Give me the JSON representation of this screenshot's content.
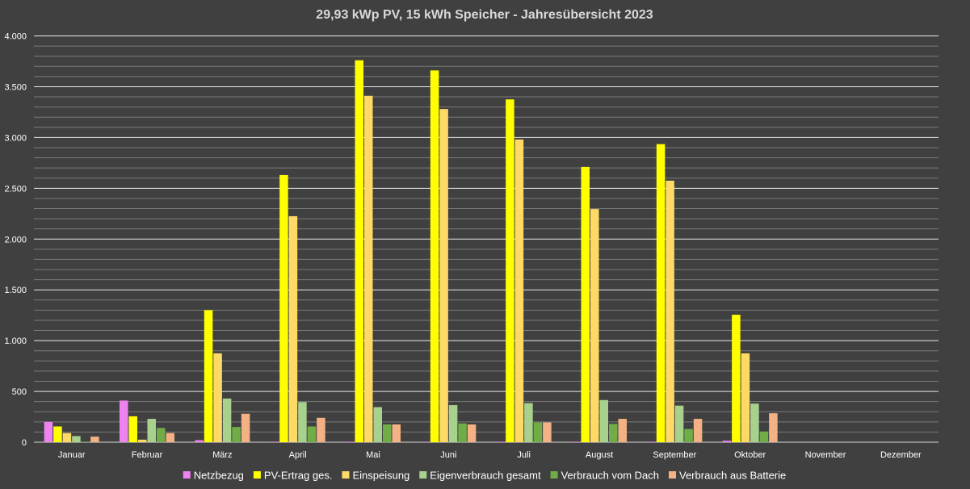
{
  "chart_data": {
    "type": "bar",
    "title": "29,93 kWp PV, 15 kWh Speicher - Jahresübersicht 2023",
    "xlabel": "",
    "ylabel": "",
    "ylim": [
      0,
      4000
    ],
    "yticks": [
      0,
      500,
      1000,
      1500,
      2000,
      2500,
      3000,
      3500,
      4000
    ],
    "ytick_labels": [
      "0",
      "500",
      "1.000",
      "1.500",
      "2.000",
      "2.500",
      "3.000",
      "3.500",
      "4.000"
    ],
    "minor_grid_step": 100,
    "grid": true,
    "legend_position": "bottom",
    "categories": [
      "Januar",
      "Februar",
      "März",
      "April",
      "Mai",
      "Juni",
      "Juli",
      "August",
      "September",
      "Oktober",
      "November",
      "Dezember"
    ],
    "series": [
      {
        "name": "Netzbezug",
        "color": "#ee82ee",
        "values": [
          200,
          410,
          20,
          5,
          5,
          5,
          5,
          5,
          5,
          15,
          0,
          0
        ]
      },
      {
        "name": "PV-Ertrag ges.",
        "color": "#ffff00",
        "values": [
          155,
          255,
          1300,
          2630,
          3760,
          3660,
          3375,
          2710,
          2935,
          1255,
          0,
          0
        ]
      },
      {
        "name": "Einspeisung",
        "color": "#ffd966",
        "values": [
          90,
          25,
          875,
          2225,
          3410,
          3280,
          2980,
          2295,
          2575,
          875,
          0,
          0
        ]
      },
      {
        "name": "Eigenverbrauch gesamt",
        "color": "#a9d18e",
        "values": [
          60,
          230,
          430,
          395,
          345,
          365,
          385,
          415,
          360,
          380,
          0,
          0
        ]
      },
      {
        "name": "Verbrauch vom Dach",
        "color": "#70ad47",
        "values": [
          5,
          140,
          150,
          155,
          175,
          185,
          195,
          180,
          130,
          105,
          0,
          0
        ]
      },
      {
        "name": "Verbrauch aus Batterie",
        "color": "#f4b183",
        "values": [
          55,
          90,
          280,
          240,
          175,
          175,
          195,
          230,
          230,
          285,
          0,
          0
        ]
      }
    ]
  }
}
